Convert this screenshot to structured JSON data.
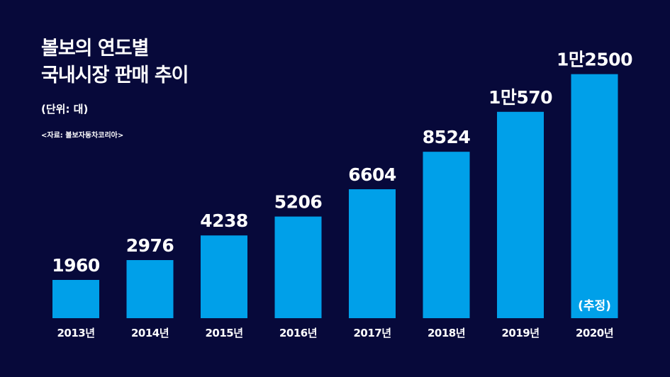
{
  "header": {
    "title_line1": "볼보의 연도별",
    "title_line2": "국내시장 판매 추이",
    "unit": "(단위: 대)",
    "source": "<자료: 볼보자동차코리아>"
  },
  "chart_data": {
    "type": "bar",
    "categories": [
      "2013년",
      "2014년",
      "2015년",
      "2016년",
      "2017년",
      "2018년",
      "2019년",
      "2020년"
    ],
    "values": [
      1960,
      2976,
      4238,
      5206,
      6604,
      8524,
      10570,
      12500
    ],
    "value_labels": [
      "1960",
      "2976",
      "4238",
      "5206",
      "6604",
      "8524",
      "1만570",
      "1만2500"
    ],
    "annotations": [
      {
        "category": "2020년",
        "text": "(추정)"
      }
    ],
    "title": "볼보의 연도별 국내시장 판매 추이",
    "ylabel": "",
    "xlabel": "",
    "grid": false,
    "colors": {
      "background": "#07093a",
      "bar": "#00a0e9",
      "text": "#ffffff"
    }
  }
}
